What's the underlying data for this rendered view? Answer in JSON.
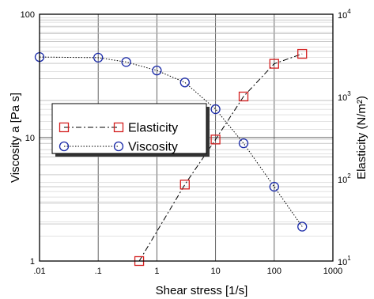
{
  "chart_data": {
    "type": "line",
    "xlabel": "Shear stress  [1/s]",
    "ylabel_left": "Viscosity   a [Pa s]",
    "ylabel_right": "Elasticity  (N/m²)",
    "x_scale": "log",
    "y_scale": "log",
    "xlim": [
      0.01,
      1000
    ],
    "ylim_left": [
      1,
      100
    ],
    "ylim_right": [
      10,
      10000
    ],
    "grid": true,
    "legend_position": "middle-left",
    "x_ticks": [
      {
        "value": 0.01,
        "label": ".01"
      },
      {
        "value": 0.1,
        "label": ".1"
      },
      {
        "value": 1,
        "label": "1"
      },
      {
        "value": 10,
        "label": "10"
      },
      {
        "value": 100,
        "label": "100"
      },
      {
        "value": 1000,
        "label": "1000"
      }
    ],
    "y_ticks_left": [
      {
        "value": 1,
        "label": "1"
      },
      {
        "value": 10,
        "label": "10"
      },
      {
        "value": 100,
        "label": "100"
      }
    ],
    "y_ticks_right": [
      {
        "value": 10,
        "base": "10",
        "exp": "1"
      },
      {
        "value": 100,
        "base": "10",
        "exp": "2"
      },
      {
        "value": 1000,
        "base": "10",
        "exp": "3"
      },
      {
        "value": 10000,
        "base": "10",
        "exp": "4"
      }
    ],
    "series": [
      {
        "name": "Elasticity",
        "axis": "right",
        "marker": "square",
        "line_style": "dash-dot",
        "color": "#d42020",
        "line_color": "#000000",
        "x": [
          0.5,
          3,
          10,
          30,
          100,
          300
        ],
        "y": [
          10,
          85,
          300,
          1000,
          2500,
          3300
        ]
      },
      {
        "name": "Viscosity",
        "axis": "left",
        "marker": "circle",
        "line_style": "dotted",
        "color": "#1a2aa8",
        "line_color": "#000000",
        "x": [
          0.01,
          0.1,
          0.3,
          1,
          3,
          10,
          30,
          100,
          300
        ],
        "y": [
          45,
          44.5,
          41,
          35,
          28,
          17,
          9,
          4,
          1.9
        ]
      }
    ]
  }
}
